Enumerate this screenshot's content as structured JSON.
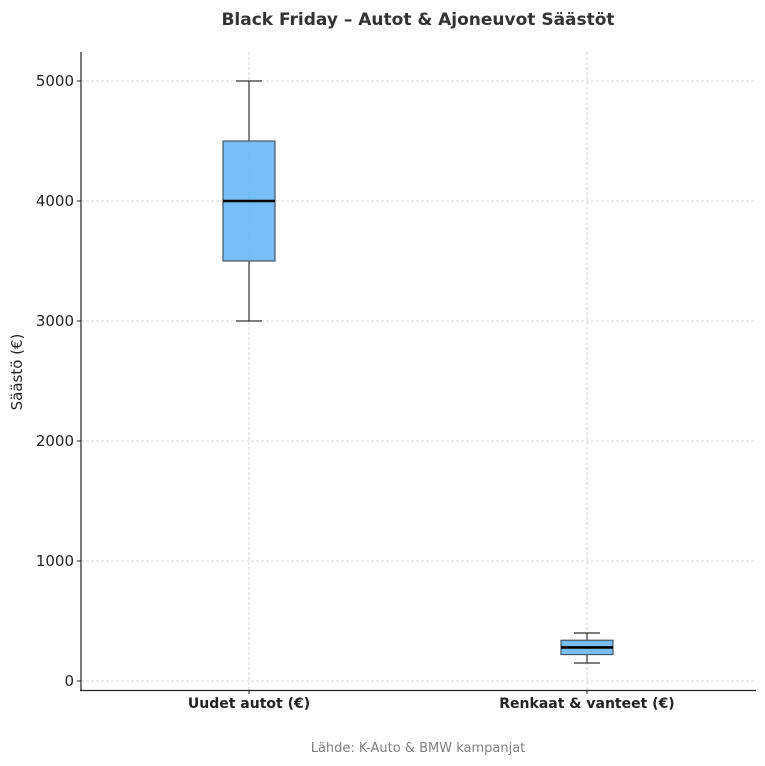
{
  "chart_data": {
    "type": "box",
    "title": "Black Friday – Autot & Ajoneuvot Säästöt",
    "xlabel": "",
    "ylabel": "Säästö (€)",
    "categories": [
      "Uudet autot (€)",
      "Renkaat & vanteet (€)"
    ],
    "series": [
      {
        "name": "Uudet autot (€)",
        "whisker_low": 3000,
        "q1": 3500,
        "median": 4000,
        "q3": 4500,
        "whisker_high": 5000
      },
      {
        "name": "Renkaat & vanteet (€)",
        "whisker_low": 150,
        "q1": 220,
        "median": 280,
        "q3": 340,
        "whisker_high": 400
      }
    ],
    "yticks": [
      0,
      1000,
      2000,
      3000,
      4000,
      5000
    ],
    "ylim": [
      -80,
      5250
    ],
    "grid": true,
    "box_color": "#64b5f6",
    "annotation": "Lähde: K-Auto & BMW kampanjat"
  }
}
